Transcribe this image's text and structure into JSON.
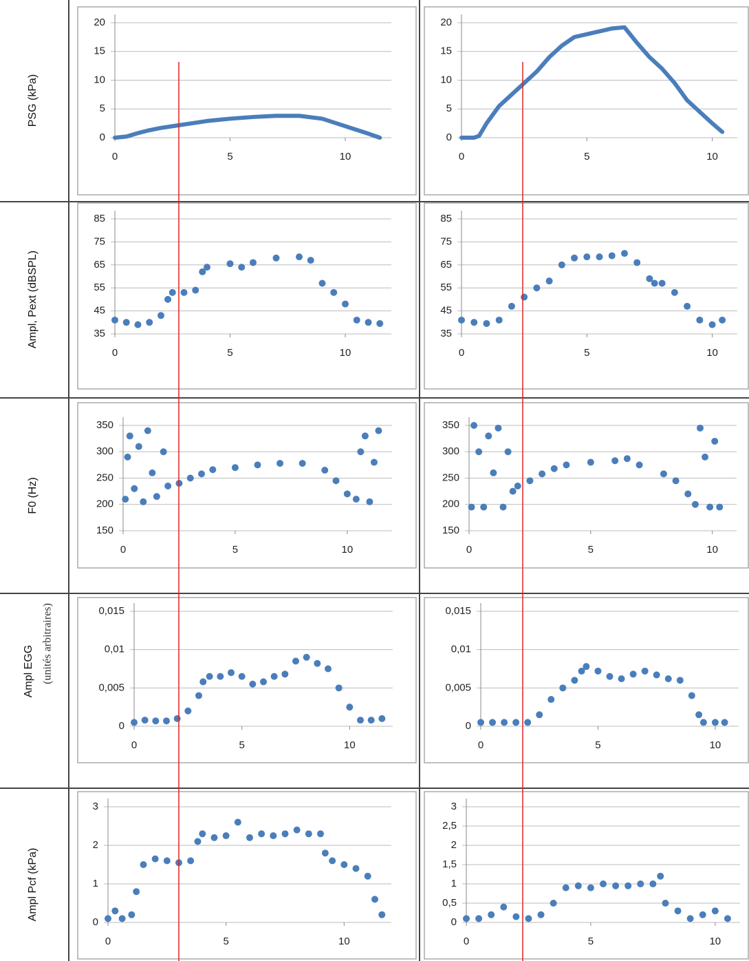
{
  "chart_data": [
    {
      "type": "line",
      "ylabel": "PSG (kPa)",
      "color": "#4a7ebb",
      "x": [
        0,
        0.5,
        1,
        1.5,
        2,
        3,
        4,
        5,
        6,
        7,
        8,
        9,
        10,
        11,
        11.5
      ],
      "values": [
        0,
        0.2,
        0.8,
        1.3,
        1.7,
        2.3,
        2.9,
        3.3,
        3.6,
        3.8,
        3.8,
        3.3,
        2,
        0.7,
        0
      ],
      "xlim": [
        0,
        12
      ],
      "ylim": [
        0,
        20
      ],
      "xticks": [
        0,
        5,
        10
      ],
      "yticks": [
        0,
        5,
        10,
        15,
        20
      ]
    },
    {
      "type": "line",
      "color": "#4a7ebb",
      "x": [
        0,
        0.5,
        0.7,
        1,
        1.5,
        2,
        2.5,
        3,
        3.5,
        4,
        4.5,
        5,
        5.5,
        6,
        6.5,
        7,
        7.5,
        8,
        8.5,
        9,
        9.5,
        10,
        10.4
      ],
      "values": [
        0,
        0,
        0.3,
        2.5,
        5.5,
        7.5,
        9.5,
        11.5,
        14,
        16,
        17.5,
        18,
        18.5,
        19,
        19.2,
        16.5,
        14,
        12,
        9.5,
        6.5,
        4.5,
        2.5,
        1
      ],
      "xlim": [
        0,
        11
      ],
      "ylim": [
        0,
        20
      ],
      "xticks": [
        0,
        5,
        10
      ],
      "yticks": [
        0,
        5,
        10,
        15,
        20
      ]
    },
    {
      "type": "scatter",
      "ylabel": "Ampl, Pext (dBSPL)",
      "color": "#4a7ebb",
      "x": [
        0,
        0.5,
        1,
        1.5,
        2,
        2.3,
        2.5,
        3,
        3.5,
        3.8,
        4,
        5,
        5.5,
        6,
        7,
        8,
        8.5,
        9,
        9.5,
        10,
        10.5,
        11,
        11.5
      ],
      "values": [
        41,
        40,
        39,
        40,
        43,
        50,
        53,
        53,
        54,
        62,
        64,
        65.5,
        64,
        66,
        68,
        68.5,
        67,
        57,
        53,
        48,
        41,
        40,
        39.5
      ],
      "xlim": [
        0,
        12
      ],
      "ylim": [
        35,
        85
      ],
      "xticks": [
        0,
        5,
        10
      ],
      "yticks": [
        35,
        45,
        55,
        65,
        75,
        85
      ]
    },
    {
      "type": "scatter",
      "color": "#4a7ebb",
      "x": [
        0,
        0.5,
        1,
        1.5,
        2,
        2.5,
        3,
        3.5,
        4,
        4.5,
        5,
        5.5,
        6,
        6.5,
        7,
        7.5,
        7.7,
        8,
        8.5,
        9,
        9.5,
        10,
        10.4
      ],
      "values": [
        41,
        40,
        39.5,
        41,
        47,
        51,
        55,
        58,
        65,
        68,
        68.5,
        68.5,
        69,
        70,
        66,
        59,
        57,
        57,
        53,
        47,
        41,
        39,
        41
      ],
      "xlim": [
        0,
        11
      ],
      "ylim": [
        35,
        85
      ],
      "xticks": [
        0,
        5,
        10
      ],
      "yticks": [
        35,
        45,
        55,
        65,
        75,
        85
      ]
    },
    {
      "type": "scatter",
      "ylabel": "F0 (Hz)",
      "color": "#4a7ebb",
      "x": [
        0.1,
        0.2,
        0.3,
        0.5,
        0.7,
        0.9,
        1.1,
        1.3,
        1.5,
        1.8,
        2,
        2.5,
        3,
        3.5,
        4,
        5,
        6,
        7,
        8,
        9,
        9.5,
        10,
        10.4,
        10.6,
        10.8,
        11,
        11.2,
        11.4
      ],
      "values": [
        210,
        290,
        330,
        230,
        310,
        205,
        340,
        260,
        215,
        300,
        235,
        240,
        250,
        258,
        266,
        270,
        275,
        278,
        278,
        265,
        245,
        220,
        210,
        300,
        330,
        205,
        280,
        340
      ],
      "xlim": [
        0,
        12
      ],
      "ylim": [
        150,
        350
      ],
      "xticks": [
        0,
        5,
        10
      ],
      "yticks": [
        150,
        200,
        250,
        300,
        350
      ]
    },
    {
      "type": "scatter",
      "color": "#4a7ebb",
      "x": [
        0.1,
        0.2,
        0.4,
        0.6,
        0.8,
        1,
        1.2,
        1.4,
        1.6,
        1.8,
        2,
        2.5,
        3,
        3.5,
        4,
        5,
        6,
        6.5,
        7,
        8,
        8.5,
        9,
        9.3,
        9.5,
        9.7,
        9.9,
        10.1,
        10.3
      ],
      "values": [
        195,
        350,
        300,
        195,
        330,
        260,
        345,
        195,
        300,
        225,
        235,
        245,
        258,
        268,
        275,
        280,
        283,
        287,
        275,
        258,
        245,
        220,
        200,
        345,
        290,
        195,
        320,
        195
      ],
      "xlim": [
        0,
        11
      ],
      "ylim": [
        150,
        350
      ],
      "xticks": [
        0,
        5,
        10
      ],
      "yticks": [
        150,
        200,
        250,
        300,
        350
      ]
    },
    {
      "type": "scatter",
      "ylabel": "Ampl EGG",
      "ylabel_note": "(unités arbitraires)",
      "color": "#4a7ebb",
      "x": [
        0,
        0.5,
        1,
        1.5,
        2,
        2.5,
        3,
        3.2,
        3.5,
        4,
        4.5,
        5,
        5.5,
        6,
        6.5,
        7,
        7.5,
        8,
        8.5,
        9,
        9.5,
        10,
        10.5,
        11,
        11.5
      ],
      "values": [
        0.0005,
        0.0008,
        0.0007,
        0.0007,
        0.001,
        0.002,
        0.004,
        0.0058,
        0.0065,
        0.0065,
        0.007,
        0.0065,
        0.0055,
        0.0058,
        0.0065,
        0.0068,
        0.0085,
        0.009,
        0.0082,
        0.0075,
        0.005,
        0.0025,
        0.0008,
        0.0008,
        0.001
      ],
      "xlim": [
        0,
        12
      ],
      "ylim": [
        0,
        0.015
      ],
      "xticks": [
        0,
        5,
        10
      ],
      "yticks": [
        0,
        {
          "value": 0.005,
          "label": "0,005"
        },
        {
          "value": 0.01,
          "label": "0,01"
        },
        {
          "value": 0.015,
          "label": "0,015"
        }
      ]
    },
    {
      "type": "scatter",
      "color": "#4a7ebb",
      "x": [
        0,
        0.5,
        1,
        1.5,
        2,
        2.5,
        3,
        3.5,
        4,
        4.3,
        4.5,
        5,
        5.5,
        6,
        6.5,
        7,
        7.5,
        8,
        8.5,
        9,
        9.3,
        9.5,
        10,
        10.4
      ],
      "values": [
        0.0005,
        0.0005,
        0.0005,
        0.0005,
        0.0005,
        0.0015,
        0.0035,
        0.005,
        0.006,
        0.0072,
        0.0078,
        0.0072,
        0.0065,
        0.0062,
        0.0068,
        0.0072,
        0.0067,
        0.0062,
        0.006,
        0.004,
        0.0015,
        0.0005,
        0.0005,
        0.0005
      ],
      "xlim": [
        0,
        11
      ],
      "ylim": [
        0,
        0.015
      ],
      "xticks": [
        0,
        5,
        10
      ],
      "yticks": [
        0,
        {
          "value": 0.005,
          "label": "0,005"
        },
        {
          "value": 0.01,
          "label": "0,01"
        },
        {
          "value": 0.015,
          "label": "0,015"
        }
      ]
    },
    {
      "type": "scatter",
      "ylabel": "Ampl Pcf (kPa)",
      "color": "#4a7ebb",
      "x": [
        0,
        0.3,
        0.6,
        1,
        1.2,
        1.5,
        2,
        2.5,
        3,
        3.5,
        3.8,
        4,
        4.5,
        5,
        5.5,
        6,
        6.5,
        7,
        7.5,
        8,
        8.5,
        9,
        9.2,
        9.5,
        10,
        10.5,
        11,
        11.3,
        11.6
      ],
      "values": [
        0.1,
        0.3,
        0.1,
        0.2,
        0.8,
        1.5,
        1.65,
        1.6,
        1.55,
        1.6,
        2.1,
        2.3,
        2.2,
        2.25,
        2.6,
        2.2,
        2.3,
        2.25,
        2.3,
        2.4,
        2.3,
        2.3,
        1.8,
        1.6,
        1.5,
        1.4,
        1.2,
        0.6,
        0.2
      ],
      "xlim": [
        0,
        12
      ],
      "ylim": [
        0,
        3
      ],
      "xticks": [
        0,
        5,
        10
      ],
      "yticks": [
        0,
        1,
        2,
        3
      ]
    },
    {
      "type": "scatter",
      "color": "#4a7ebb",
      "x": [
        0,
        0.5,
        1,
        1.5,
        2,
        2.5,
        3,
        3.5,
        4,
        4.5,
        5,
        5.5,
        6,
        6.5,
        7,
        7.5,
        7.8,
        8,
        8.5,
        9,
        9.5,
        10,
        10.5
      ],
      "values": [
        0.1,
        0.1,
        0.2,
        0.4,
        0.15,
        0.1,
        0.2,
        0.5,
        0.9,
        0.95,
        0.9,
        1,
        0.95,
        0.95,
        1,
        1,
        1.2,
        0.5,
        0.3,
        0.1,
        0.2,
        0.3,
        0.1
      ],
      "xlim": [
        0,
        11
      ],
      "ylim": [
        0,
        3
      ],
      "xticks": [
        0,
        5,
        10
      ],
      "yticks": [
        0,
        {
          "value": 0.5,
          "label": "0,5"
        },
        1,
        {
          "value": 1.5,
          "label": "1,5"
        },
        2,
        {
          "value": 2.5,
          "label": "2,5"
        },
        3
      ]
    }
  ]
}
